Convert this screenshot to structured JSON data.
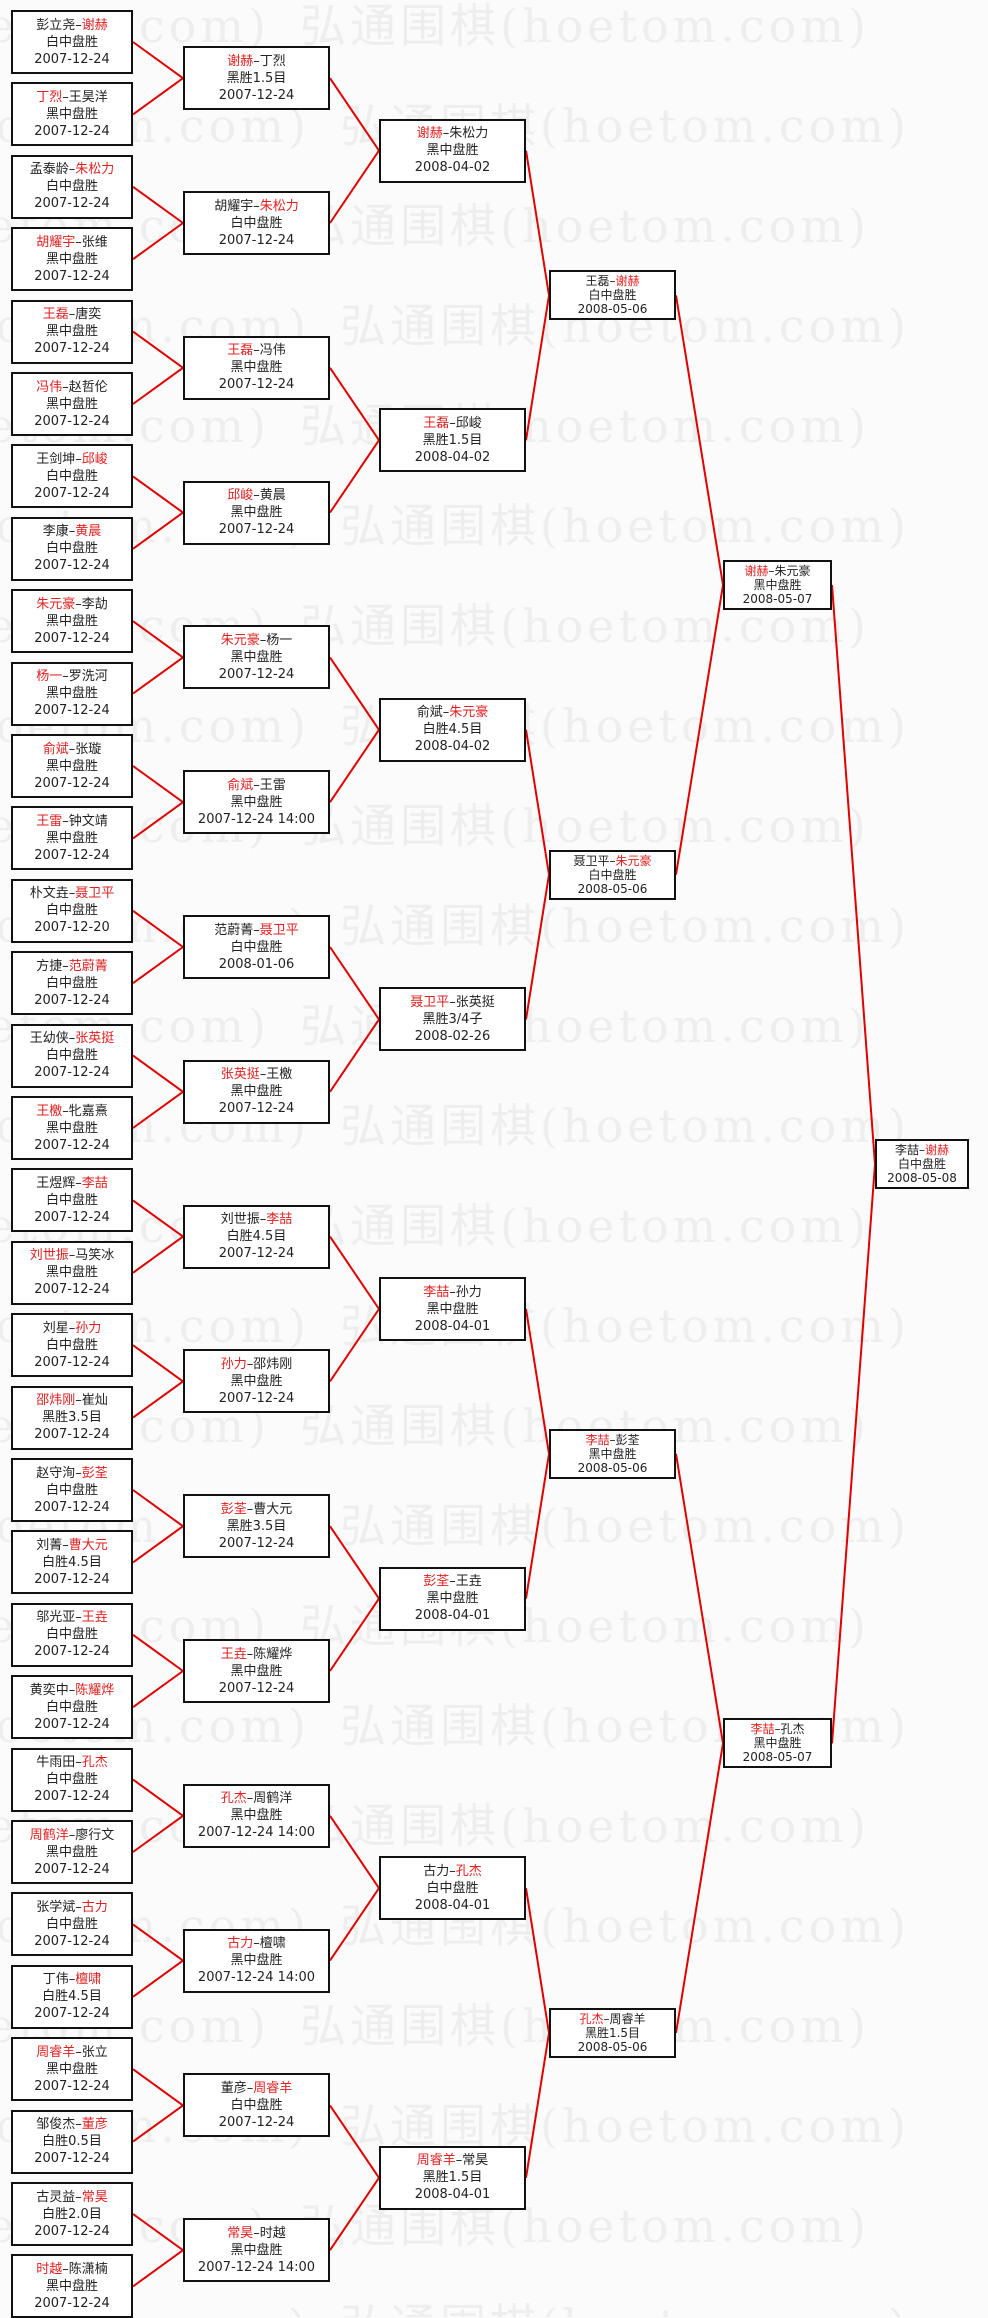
{
  "watermark": "弘通围棋(hoetom.com)",
  "colors": {
    "winner": "#e02020",
    "line": "#e00000",
    "border": "#111111"
  },
  "rounds": [
    [
      {
        "players": [
          "彭立尧",
          "谢赫"
        ],
        "winner": 1,
        "result": "白中盘胜",
        "date": "2007-12-24"
      },
      {
        "players": [
          "丁烈",
          "王昊洋"
        ],
        "winner": 0,
        "result": "黑中盘胜",
        "date": "2007-12-24"
      },
      {
        "players": [
          "孟泰龄",
          "朱松力"
        ],
        "winner": 1,
        "result": "白中盘胜",
        "date": "2007-12-24"
      },
      {
        "players": [
          "胡耀宇",
          "张维"
        ],
        "winner": 0,
        "result": "黑中盘胜",
        "date": "2007-12-24"
      },
      {
        "players": [
          "王磊",
          "唐奕"
        ],
        "winner": 0,
        "result": "黑中盘胜",
        "date": "2007-12-24"
      },
      {
        "players": [
          "冯伟",
          "赵哲伦"
        ],
        "winner": 0,
        "result": "黑中盘胜",
        "date": "2007-12-24"
      },
      {
        "players": [
          "王剑坤",
          "邱峻"
        ],
        "winner": 1,
        "result": "白中盘胜",
        "date": "2007-12-24"
      },
      {
        "players": [
          "李康",
          "黄晨"
        ],
        "winner": 1,
        "result": "白中盘胜",
        "date": "2007-12-24"
      },
      {
        "players": [
          "朱元豪",
          "李劼"
        ],
        "winner": 0,
        "result": "黑中盘胜",
        "date": "2007-12-24"
      },
      {
        "players": [
          "杨一",
          "罗洗河"
        ],
        "winner": 0,
        "result": "黑中盘胜",
        "date": "2007-12-24"
      },
      {
        "players": [
          "俞斌",
          "张璇"
        ],
        "winner": 0,
        "result": "黑中盘胜",
        "date": "2007-12-24"
      },
      {
        "players": [
          "王雷",
          "钟文靖"
        ],
        "winner": 0,
        "result": "黑中盘胜",
        "date": "2007-12-24"
      },
      {
        "players": [
          "朴文垚",
          "聂卫平"
        ],
        "winner": 1,
        "result": "白中盘胜",
        "date": "2007-12-20"
      },
      {
        "players": [
          "方捷",
          "范蔚菁"
        ],
        "winner": 1,
        "result": "白中盘胜",
        "date": "2007-12-24"
      },
      {
        "players": [
          "王幼侠",
          "张英挺"
        ],
        "winner": 1,
        "result": "白中盘胜",
        "date": "2007-12-24"
      },
      {
        "players": [
          "王檄",
          "牝嘉熹"
        ],
        "winner": 0,
        "result": "黑中盘胜",
        "date": "2007-12-24"
      },
      {
        "players": [
          "王煜辉",
          "李喆"
        ],
        "winner": 1,
        "result": "白中盘胜",
        "date": "2007-12-24"
      },
      {
        "players": [
          "刘世振",
          "马笑冰"
        ],
        "winner": 0,
        "result": "黑中盘胜",
        "date": "2007-12-24"
      },
      {
        "players": [
          "刘星",
          "孙力"
        ],
        "winner": 1,
        "result": "白中盘胜",
        "date": "2007-12-24"
      },
      {
        "players": [
          "邵炜刚",
          "崔灿"
        ],
        "winner": 0,
        "result": "黑胜3.5目",
        "date": "2007-12-24"
      },
      {
        "players": [
          "赵守洵",
          "彭荃"
        ],
        "winner": 1,
        "result": "白中盘胜",
        "date": "2007-12-24"
      },
      {
        "players": [
          "刘菁",
          "曹大元"
        ],
        "winner": 1,
        "result": "白胜4.5目",
        "date": "2007-12-24"
      },
      {
        "players": [
          "邬光亚",
          "王垚"
        ],
        "winner": 1,
        "result": "白中盘胜",
        "date": "2007-12-24"
      },
      {
        "players": [
          "黄奕中",
          "陈耀烨"
        ],
        "winner": 1,
        "result": "白中盘胜",
        "date": "2007-12-24"
      },
      {
        "players": [
          "牛雨田",
          "孔杰"
        ],
        "winner": 1,
        "result": "白中盘胜",
        "date": "2007-12-24"
      },
      {
        "players": [
          "周鹤洋",
          "廖行文"
        ],
        "winner": 0,
        "result": "黑中盘胜",
        "date": "2007-12-24"
      },
      {
        "players": [
          "张学斌",
          "古力"
        ],
        "winner": 1,
        "result": "白中盘胜",
        "date": "2007-12-24"
      },
      {
        "players": [
          "丁伟",
          "檀啸"
        ],
        "winner": 1,
        "result": "白胜4.5目",
        "date": "2007-12-24"
      },
      {
        "players": [
          "周睿羊",
          "张立"
        ],
        "winner": 0,
        "result": "黑中盘胜",
        "date": "2007-12-24"
      },
      {
        "players": [
          "邹俊杰",
          "董彦"
        ],
        "winner": 1,
        "result": "白胜0.5目",
        "date": "2007-12-24"
      },
      {
        "players": [
          "古灵益",
          "常昊"
        ],
        "winner": 1,
        "result": "白胜2.0目",
        "date": "2007-12-24"
      },
      {
        "players": [
          "时越",
          "陈潇楠"
        ],
        "winner": 0,
        "result": "黑中盘胜",
        "date": "2007-12-24"
      }
    ],
    [
      {
        "players": [
          "谢赫",
          "丁烈"
        ],
        "winner": 0,
        "result": "黑胜1.5目",
        "date": "2007-12-24"
      },
      {
        "players": [
          "胡耀宇",
          "朱松力"
        ],
        "winner": 1,
        "result": "白中盘胜",
        "date": "2007-12-24"
      },
      {
        "players": [
          "王磊",
          "冯伟"
        ],
        "winner": 0,
        "result": "黑中盘胜",
        "date": "2007-12-24"
      },
      {
        "players": [
          "邱峻",
          "黄晨"
        ],
        "winner": 0,
        "result": "黑中盘胜",
        "date": "2007-12-24"
      },
      {
        "players": [
          "朱元豪",
          "杨一"
        ],
        "winner": 0,
        "result": "黑中盘胜",
        "date": "2007-12-24"
      },
      {
        "players": [
          "俞斌",
          "王雷"
        ],
        "winner": 0,
        "result": "黑中盘胜",
        "date": "2007-12-24 14:00"
      },
      {
        "players": [
          "范蔚菁",
          "聂卫平"
        ],
        "winner": 1,
        "result": "白中盘胜",
        "date": "2008-01-06"
      },
      {
        "players": [
          "张英挺",
          "王檄"
        ],
        "winner": 0,
        "result": "黑中盘胜",
        "date": "2007-12-24"
      },
      {
        "players": [
          "刘世振",
          "李喆"
        ],
        "winner": 1,
        "result": "白胜4.5目",
        "date": "2007-12-24"
      },
      {
        "players": [
          "孙力",
          "邵炜刚"
        ],
        "winner": 0,
        "result": "黑中盘胜",
        "date": "2007-12-24"
      },
      {
        "players": [
          "彭荃",
          "曹大元"
        ],
        "winner": 0,
        "result": "黑胜3.5目",
        "date": "2007-12-24"
      },
      {
        "players": [
          "王垚",
          "陈耀烨"
        ],
        "winner": 0,
        "result": "黑中盘胜",
        "date": "2007-12-24"
      },
      {
        "players": [
          "孔杰",
          "周鹤洋"
        ],
        "winner": 0,
        "result": "黑中盘胜",
        "date": "2007-12-24 14:00"
      },
      {
        "players": [
          "古力",
          "檀啸"
        ],
        "winner": 0,
        "result": "黑中盘胜",
        "date": "2007-12-24 14:00"
      },
      {
        "players": [
          "董彦",
          "周睿羊"
        ],
        "winner": 1,
        "result": "白中盘胜",
        "date": "2007-12-24"
      },
      {
        "players": [
          "常昊",
          "时越"
        ],
        "winner": 0,
        "result": "黑中盘胜",
        "date": "2007-12-24 14:00"
      }
    ],
    [
      {
        "players": [
          "谢赫",
          "朱松力"
        ],
        "winner": 0,
        "result": "黑中盘胜",
        "date": "2008-04-02"
      },
      {
        "players": [
          "王磊",
          "邱峻"
        ],
        "winner": 0,
        "result": "黑胜1.5目",
        "date": "2008-04-02"
      },
      {
        "players": [
          "俞斌",
          "朱元豪"
        ],
        "winner": 1,
        "result": "白胜4.5目",
        "date": "2008-04-02"
      },
      {
        "players": [
          "聂卫平",
          "张英挺"
        ],
        "winner": 0,
        "result": "黑胜3/4子",
        "date": "2008-02-26"
      },
      {
        "players": [
          "李喆",
          "孙力"
        ],
        "winner": 0,
        "result": "黑中盘胜",
        "date": "2008-04-01"
      },
      {
        "players": [
          "彭荃",
          "王垚"
        ],
        "winner": 0,
        "result": "黑中盘胜",
        "date": "2008-04-01"
      },
      {
        "players": [
          "古力",
          "孔杰"
        ],
        "winner": 1,
        "result": "白中盘胜",
        "date": "2008-04-01"
      },
      {
        "players": [
          "周睿羊",
          "常昊"
        ],
        "winner": 0,
        "result": "黑胜1.5目",
        "date": "2008-04-01"
      }
    ],
    [
      {
        "players": [
          "王磊",
          "谢赫"
        ],
        "winner": 1,
        "result": "白中盘胜",
        "date": "2008-05-06"
      },
      {
        "players": [
          "聂卫平",
          "朱元豪"
        ],
        "winner": 1,
        "result": "白中盘胜",
        "date": "2008-05-06"
      },
      {
        "players": [
          "李喆",
          "彭荃"
        ],
        "winner": 0,
        "result": "黑中盘胜",
        "date": "2008-05-06"
      },
      {
        "players": [
          "孔杰",
          "周睿羊"
        ],
        "winner": 0,
        "result": "黑胜1.5目",
        "date": "2008-05-06"
      }
    ],
    [
      {
        "players": [
          "谢赫",
          "朱元豪"
        ],
        "winner": 0,
        "result": "黑中盘胜",
        "date": "2008-05-07"
      },
      {
        "players": [
          "李喆",
          "孔杰"
        ],
        "winner": 0,
        "result": "黑中盘胜",
        "date": "2008-05-07"
      }
    ],
    [
      {
        "players": [
          "李喆",
          "谢赫"
        ],
        "winner": 1,
        "result": "白中盘胜",
        "date": "2008-05-08"
      }
    ]
  ]
}
